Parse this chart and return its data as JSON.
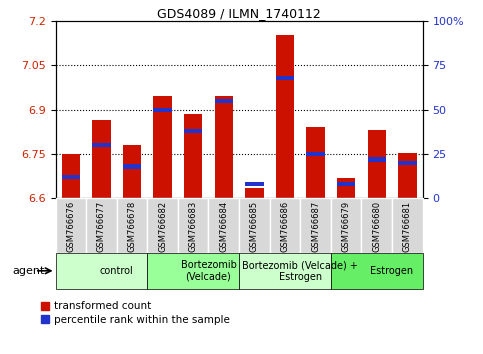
{
  "title": "GDS4089 / ILMN_1740112",
  "samples": [
    "GSM766676",
    "GSM766677",
    "GSM766678",
    "GSM766682",
    "GSM766683",
    "GSM766684",
    "GSM766685",
    "GSM766686",
    "GSM766687",
    "GSM766679",
    "GSM766680",
    "GSM766681"
  ],
  "red_values": [
    6.75,
    6.865,
    6.78,
    6.945,
    6.885,
    6.945,
    6.635,
    7.155,
    6.84,
    6.67,
    6.83,
    6.755
  ],
  "blue_values": [
    12,
    30,
    18,
    50,
    38,
    55,
    8,
    68,
    25,
    8,
    22,
    20
  ],
  "groups": [
    {
      "label": "control",
      "start": 0,
      "end": 3,
      "color": "#ccffcc"
    },
    {
      "label": "Bortezomib\n(Velcade)",
      "start": 3,
      "end": 6,
      "color": "#99ff99"
    },
    {
      "label": "Bortezomib (Velcade) +\nEstrogen",
      "start": 6,
      "end": 9,
      "color": "#ccffcc"
    },
    {
      "label": "Estrogen",
      "start": 9,
      "end": 12,
      "color": "#66ee66"
    }
  ],
  "ylim_left": [
    6.6,
    7.2
  ],
  "ylim_right": [
    0,
    100
  ],
  "yticks_left": [
    6.6,
    6.75,
    6.9,
    7.05,
    7.2
  ],
  "yticks_right": [
    0,
    25,
    50,
    75,
    100
  ],
  "bar_width": 0.6,
  "bar_color": "#cc1100",
  "blue_color": "#2233cc",
  "ylabel_left_color": "#cc2200",
  "ylabel_right_color": "#2233cc",
  "background_color": "#ffffff",
  "agent_label": "agent",
  "legend_red": "transformed count",
  "legend_blue": "percentile rank within the sample"
}
